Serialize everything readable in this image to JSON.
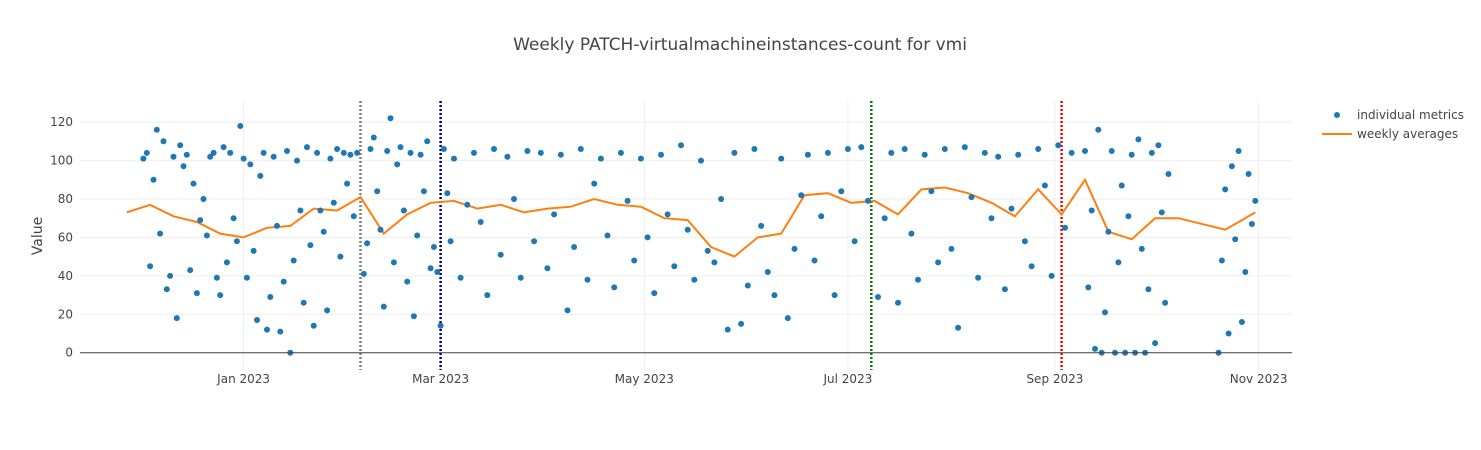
{
  "chart_data": {
    "type": "scatter",
    "title": "Weekly PATCH-virtualmachineinstances-count for vmi",
    "xlabel": "",
    "ylabel": "Value",
    "x_range": [
      "2022-11-13",
      "2023-11-11"
    ],
    "ylim": [
      -9,
      131
    ],
    "grid": true,
    "legend_position": "top-right",
    "x_ticks": [
      {
        "date": "2023-01-01",
        "label": "Jan 2023"
      },
      {
        "date": "2023-03-01",
        "label": "Mar 2023"
      },
      {
        "date": "2023-05-01",
        "label": "May 2023"
      },
      {
        "date": "2023-07-01",
        "label": "Jul 2023"
      },
      {
        "date": "2023-09-01",
        "label": "Sep 2023"
      },
      {
        "date": "2023-11-01",
        "label": "Nov 2023"
      }
    ],
    "y_ticks": [
      0,
      20,
      40,
      60,
      80,
      100,
      120
    ],
    "vertical_markers": [
      {
        "date": "2023-02-05",
        "color": "#808080"
      },
      {
        "date": "2023-03-01",
        "color": "#00008b"
      },
      {
        "date": "2023-07-08",
        "color": "#008000"
      },
      {
        "date": "2023-09-03",
        "color": "#ff0000"
      }
    ],
    "series": [
      {
        "name": "individual metrics",
        "kind": "markers",
        "color": "#1f77b4",
        "points": [
          [
            "2022-12-02",
            101
          ],
          [
            "2022-12-03",
            104
          ],
          [
            "2022-12-04",
            45
          ],
          [
            "2022-12-05",
            90
          ],
          [
            "2022-12-06",
            116
          ],
          [
            "2022-12-07",
            62
          ],
          [
            "2022-12-08",
            110
          ],
          [
            "2022-12-09",
            33
          ],
          [
            "2022-12-10",
            40
          ],
          [
            "2022-12-11",
            102
          ],
          [
            "2022-12-12",
            18
          ],
          [
            "2022-12-13",
            108
          ],
          [
            "2022-12-14",
            97
          ],
          [
            "2022-12-15",
            103
          ],
          [
            "2022-12-16",
            43
          ],
          [
            "2022-12-17",
            88
          ],
          [
            "2022-12-18",
            31
          ],
          [
            "2022-12-19",
            69
          ],
          [
            "2022-12-20",
            80
          ],
          [
            "2022-12-21",
            61
          ],
          [
            "2022-12-22",
            102
          ],
          [
            "2022-12-23",
            104
          ],
          [
            "2022-12-24",
            39
          ],
          [
            "2022-12-25",
            30
          ],
          [
            "2022-12-26",
            107
          ],
          [
            "2022-12-27",
            47
          ],
          [
            "2022-12-28",
            104
          ],
          [
            "2022-12-29",
            70
          ],
          [
            "2022-12-30",
            58
          ],
          [
            "2022-12-31",
            118
          ],
          [
            "2023-01-01",
            101
          ],
          [
            "2023-01-02",
            39
          ],
          [
            "2023-01-03",
            98
          ],
          [
            "2023-01-04",
            53
          ],
          [
            "2023-01-05",
            17
          ],
          [
            "2023-01-06",
            92
          ],
          [
            "2023-01-07",
            104
          ],
          [
            "2023-01-08",
            12
          ],
          [
            "2023-01-09",
            29
          ],
          [
            "2023-01-10",
            102
          ],
          [
            "2023-01-11",
            66
          ],
          [
            "2023-01-12",
            11
          ],
          [
            "2023-01-13",
            37
          ],
          [
            "2023-01-14",
            105
          ],
          [
            "2023-01-15",
            0
          ],
          [
            "2023-01-16",
            48
          ],
          [
            "2023-01-17",
            100
          ],
          [
            "2023-01-18",
            74
          ],
          [
            "2023-01-19",
            26
          ],
          [
            "2023-01-20",
            107
          ],
          [
            "2023-01-21",
            56
          ],
          [
            "2023-01-22",
            14
          ],
          [
            "2023-01-23",
            104
          ],
          [
            "2023-01-24",
            74
          ],
          [
            "2023-01-25",
            63
          ],
          [
            "2023-01-26",
            22
          ],
          [
            "2023-01-27",
            101
          ],
          [
            "2023-01-28",
            78
          ],
          [
            "2023-01-29",
            106
          ],
          [
            "2023-01-30",
            50
          ],
          [
            "2023-01-31",
            104
          ],
          [
            "2023-02-01",
            88
          ],
          [
            "2023-02-02",
            103
          ],
          [
            "2023-02-03",
            71
          ],
          [
            "2023-02-04",
            104
          ],
          [
            "2023-02-06",
            41
          ],
          [
            "2023-02-07",
            57
          ],
          [
            "2023-02-08",
            106
          ],
          [
            "2023-02-09",
            112
          ],
          [
            "2023-02-10",
            84
          ],
          [
            "2023-02-11",
            64
          ],
          [
            "2023-02-12",
            24
          ],
          [
            "2023-02-13",
            105
          ],
          [
            "2023-02-14",
            122
          ],
          [
            "2023-02-15",
            47
          ],
          [
            "2023-02-16",
            98
          ],
          [
            "2023-02-17",
            107
          ],
          [
            "2023-02-18",
            74
          ],
          [
            "2023-02-19",
            37
          ],
          [
            "2023-02-20",
            104
          ],
          [
            "2023-02-21",
            19
          ],
          [
            "2023-02-22",
            61
          ],
          [
            "2023-02-23",
            103
          ],
          [
            "2023-02-24",
            84
          ],
          [
            "2023-02-25",
            110
          ],
          [
            "2023-02-26",
            44
          ],
          [
            "2023-02-27",
            55
          ],
          [
            "2023-02-28",
            42
          ],
          [
            "2023-03-01",
            14
          ],
          [
            "2023-03-02",
            106
          ],
          [
            "2023-03-03",
            83
          ],
          [
            "2023-03-04",
            58
          ],
          [
            "2023-03-05",
            101
          ],
          [
            "2023-03-07",
            39
          ],
          [
            "2023-03-09",
            77
          ],
          [
            "2023-03-11",
            104
          ],
          [
            "2023-03-13",
            68
          ],
          [
            "2023-03-15",
            30
          ],
          [
            "2023-03-17",
            106
          ],
          [
            "2023-03-19",
            51
          ],
          [
            "2023-03-21",
            102
          ],
          [
            "2023-03-23",
            80
          ],
          [
            "2023-03-25",
            39
          ],
          [
            "2023-03-27",
            105
          ],
          [
            "2023-03-29",
            58
          ],
          [
            "2023-03-31",
            104
          ],
          [
            "2023-04-02",
            44
          ],
          [
            "2023-04-04",
            72
          ],
          [
            "2023-04-06",
            103
          ],
          [
            "2023-04-08",
            22
          ],
          [
            "2023-04-10",
            55
          ],
          [
            "2023-04-12",
            106
          ],
          [
            "2023-04-14",
            38
          ],
          [
            "2023-04-16",
            88
          ],
          [
            "2023-04-18",
            101
          ],
          [
            "2023-04-20",
            61
          ],
          [
            "2023-04-22",
            34
          ],
          [
            "2023-04-24",
            104
          ],
          [
            "2023-04-26",
            79
          ],
          [
            "2023-04-28",
            48
          ],
          [
            "2023-04-30",
            101
          ],
          [
            "2023-05-02",
            60
          ],
          [
            "2023-05-04",
            31
          ],
          [
            "2023-05-06",
            103
          ],
          [
            "2023-05-08",
            72
          ],
          [
            "2023-05-10",
            45
          ],
          [
            "2023-05-12",
            108
          ],
          [
            "2023-05-14",
            64
          ],
          [
            "2023-05-16",
            38
          ],
          [
            "2023-05-18",
            100
          ],
          [
            "2023-05-20",
            53
          ],
          [
            "2023-05-22",
            47
          ],
          [
            "2023-05-24",
            80
          ],
          [
            "2023-05-26",
            12
          ],
          [
            "2023-05-28",
            104
          ],
          [
            "2023-05-30",
            15
          ],
          [
            "2023-06-01",
            35
          ],
          [
            "2023-06-03",
            106
          ],
          [
            "2023-06-05",
            66
          ],
          [
            "2023-06-07",
            42
          ],
          [
            "2023-06-09",
            30
          ],
          [
            "2023-06-11",
            101
          ],
          [
            "2023-06-13",
            18
          ],
          [
            "2023-06-15",
            54
          ],
          [
            "2023-06-17",
            82
          ],
          [
            "2023-06-19",
            103
          ],
          [
            "2023-06-21",
            48
          ],
          [
            "2023-06-23",
            71
          ],
          [
            "2023-06-25",
            104
          ],
          [
            "2023-06-27",
            30
          ],
          [
            "2023-06-29",
            84
          ],
          [
            "2023-07-01",
            106
          ],
          [
            "2023-07-03",
            58
          ],
          [
            "2023-07-05",
            107
          ],
          [
            "2023-07-07",
            79
          ],
          [
            "2023-07-10",
            29
          ],
          [
            "2023-07-12",
            70
          ],
          [
            "2023-07-14",
            104
          ],
          [
            "2023-07-16",
            26
          ],
          [
            "2023-07-18",
            106
          ],
          [
            "2023-07-20",
            62
          ],
          [
            "2023-07-22",
            38
          ],
          [
            "2023-07-24",
            103
          ],
          [
            "2023-07-26",
            84
          ],
          [
            "2023-07-28",
            47
          ],
          [
            "2023-07-30",
            106
          ],
          [
            "2023-08-01",
            54
          ],
          [
            "2023-08-03",
            13
          ],
          [
            "2023-08-05",
            107
          ],
          [
            "2023-08-07",
            81
          ],
          [
            "2023-08-09",
            39
          ],
          [
            "2023-08-11",
            104
          ],
          [
            "2023-08-13",
            70
          ],
          [
            "2023-08-15",
            102
          ],
          [
            "2023-08-17",
            33
          ],
          [
            "2023-08-19",
            75
          ],
          [
            "2023-08-21",
            103
          ],
          [
            "2023-08-23",
            58
          ],
          [
            "2023-08-25",
            45
          ],
          [
            "2023-08-27",
            106
          ],
          [
            "2023-08-29",
            87
          ],
          [
            "2023-08-31",
            40
          ],
          [
            "2023-09-02",
            108
          ],
          [
            "2023-09-04",
            65
          ],
          [
            "2023-09-06",
            104
          ],
          [
            "2023-09-10",
            105
          ],
          [
            "2023-09-11",
            34
          ],
          [
            "2023-09-12",
            74
          ],
          [
            "2023-09-13",
            2
          ],
          [
            "2023-09-14",
            116
          ],
          [
            "2023-09-15",
            0
          ],
          [
            "2023-09-16",
            21
          ],
          [
            "2023-09-17",
            63
          ],
          [
            "2023-09-18",
            105
          ],
          [
            "2023-09-19",
            0
          ],
          [
            "2023-09-20",
            47
          ],
          [
            "2023-09-21",
            87
          ],
          [
            "2023-09-22",
            0
          ],
          [
            "2023-09-23",
            71
          ],
          [
            "2023-09-24",
            103
          ],
          [
            "2023-09-25",
            0
          ],
          [
            "2023-09-26",
            111
          ],
          [
            "2023-09-27",
            54
          ],
          [
            "2023-09-28",
            0
          ],
          [
            "2023-09-29",
            33
          ],
          [
            "2023-09-30",
            104
          ],
          [
            "2023-10-01",
            5
          ],
          [
            "2023-10-02",
            108
          ],
          [
            "2023-10-03",
            73
          ],
          [
            "2023-10-04",
            26
          ],
          [
            "2023-10-05",
            93
          ],
          [
            "2023-10-20",
            0
          ],
          [
            "2023-10-21",
            48
          ],
          [
            "2023-10-22",
            85
          ],
          [
            "2023-10-23",
            10
          ],
          [
            "2023-10-24",
            97
          ],
          [
            "2023-10-25",
            59
          ],
          [
            "2023-10-26",
            105
          ],
          [
            "2023-10-27",
            16
          ],
          [
            "2023-10-28",
            42
          ],
          [
            "2023-10-29",
            93
          ],
          [
            "2023-10-30",
            67
          ],
          [
            "2023-10-31",
            79
          ]
        ]
      },
      {
        "name": "weekly averages",
        "kind": "line",
        "color": "#ff7f0e",
        "points": [
          [
            "2022-11-27",
            73
          ],
          [
            "2022-12-04",
            77
          ],
          [
            "2022-12-11",
            71
          ],
          [
            "2022-12-18",
            68
          ],
          [
            "2022-12-25",
            62
          ],
          [
            "2023-01-01",
            60
          ],
          [
            "2023-01-08",
            65
          ],
          [
            "2023-01-15",
            66
          ],
          [
            "2023-01-22",
            75
          ],
          [
            "2023-01-29",
            74
          ],
          [
            "2023-02-05",
            81
          ],
          [
            "2023-02-12",
            62
          ],
          [
            "2023-02-19",
            72
          ],
          [
            "2023-02-26",
            78
          ],
          [
            "2023-03-05",
            79
          ],
          [
            "2023-03-12",
            75
          ],
          [
            "2023-03-19",
            77
          ],
          [
            "2023-03-26",
            73
          ],
          [
            "2023-04-02",
            75
          ],
          [
            "2023-04-09",
            76
          ],
          [
            "2023-04-16",
            80
          ],
          [
            "2023-04-23",
            77
          ],
          [
            "2023-04-30",
            76
          ],
          [
            "2023-05-07",
            70
          ],
          [
            "2023-05-14",
            69
          ],
          [
            "2023-05-21",
            55
          ],
          [
            "2023-05-28",
            50
          ],
          [
            "2023-06-04",
            60
          ],
          [
            "2023-06-11",
            62
          ],
          [
            "2023-06-18",
            82
          ],
          [
            "2023-06-25",
            83
          ],
          [
            "2023-07-02",
            78
          ],
          [
            "2023-07-09",
            79
          ],
          [
            "2023-07-16",
            72
          ],
          [
            "2023-07-23",
            85
          ],
          [
            "2023-07-30",
            86
          ],
          [
            "2023-08-06",
            83
          ],
          [
            "2023-08-13",
            78
          ],
          [
            "2023-08-20",
            71
          ],
          [
            "2023-08-27",
            85
          ],
          [
            "2023-09-03",
            72
          ],
          [
            "2023-09-10",
            90
          ],
          [
            "2023-09-17",
            63
          ],
          [
            "2023-09-24",
            59
          ],
          [
            "2023-10-01",
            70
          ],
          [
            "2023-10-08",
            70
          ],
          [
            "2023-10-22",
            64
          ],
          [
            "2023-10-31",
            73
          ]
        ]
      }
    ]
  }
}
